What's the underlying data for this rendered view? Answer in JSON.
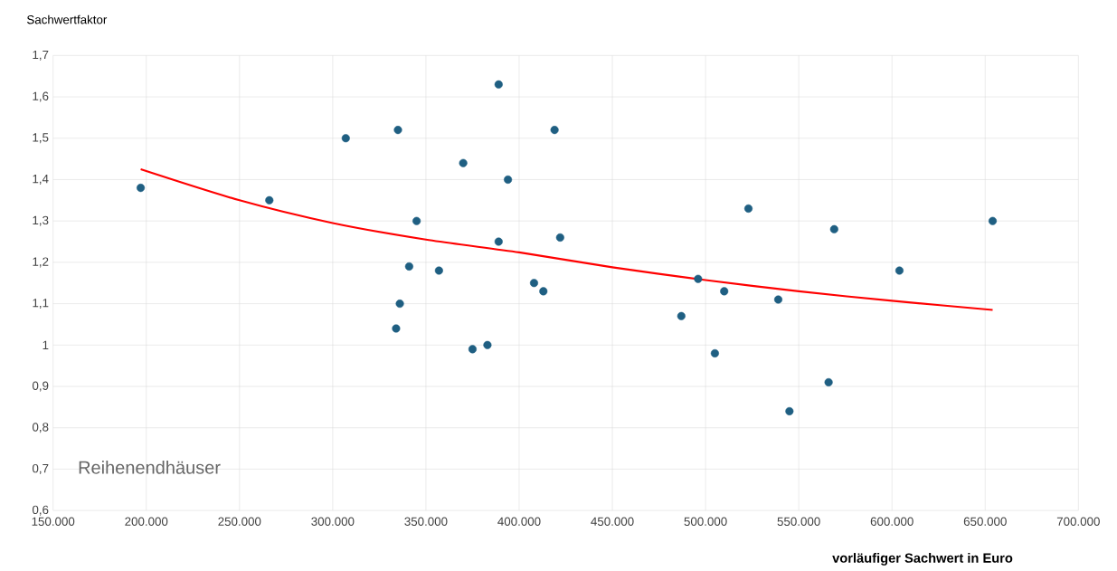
{
  "chart_data": {
    "type": "scatter",
    "ylabel": "Sachwertfaktor",
    "xlabel": "vorläufiger Sachwert in Euro",
    "annotations": [
      "Reihenendhäuser"
    ],
    "xlim": [
      150000,
      700000
    ],
    "ylim": [
      0.6,
      1.7
    ],
    "xticks": [
      {
        "value": 150000,
        "label": "150.000"
      },
      {
        "value": 200000,
        "label": "200.000"
      },
      {
        "value": 250000,
        "label": "250.000"
      },
      {
        "value": 300000,
        "label": "300.000"
      },
      {
        "value": 350000,
        "label": "350.000"
      },
      {
        "value": 400000,
        "label": "400.000"
      },
      {
        "value": 450000,
        "label": "450.000"
      },
      {
        "value": 500000,
        "label": "500.000"
      },
      {
        "value": 550000,
        "label": "550.000"
      },
      {
        "value": 600000,
        "label": "600.000"
      },
      {
        "value": 650000,
        "label": "650.000"
      },
      {
        "value": 700000,
        "label": "700.000"
      }
    ],
    "yticks": [
      {
        "value": 0.6,
        "label": "0,6"
      },
      {
        "value": 0.7,
        "label": "0,7"
      },
      {
        "value": 0.8,
        "label": "0,8"
      },
      {
        "value": 0.9,
        "label": "0,9"
      },
      1,
      {
        "value": 1.1,
        "label": "1,1"
      },
      {
        "value": 1.2,
        "label": "1,2"
      },
      {
        "value": 1.3,
        "label": "1,3"
      },
      {
        "value": 1.4,
        "label": "1,4"
      },
      {
        "value": 1.5,
        "label": "1,5"
      },
      {
        "value": 1.6,
        "label": "1,6"
      },
      {
        "value": 1.7,
        "label": "1,7"
      }
    ],
    "grid": true,
    "series": [
      {
        "marker": "circle",
        "color": "#1f5f82",
        "x": [
          197000,
          266000,
          307000,
          335000,
          370000,
          389000,
          394000,
          419000,
          345000,
          341000,
          357000,
          336000,
          334000,
          375000,
          383000,
          389000,
          422000,
          408000,
          413000,
          487000,
          496000,
          505000,
          510000,
          523000,
          539000,
          545000,
          566000,
          569000,
          604000,
          654000
        ],
        "values": [
          1.38,
          1.35,
          1.5,
          1.52,
          1.44,
          1.63,
          1.4,
          1.52,
          1.3,
          1.19,
          1.18,
          1.1,
          1.04,
          0.99,
          1.0,
          1.25,
          1.26,
          1.15,
          1.13,
          1.07,
          1.16,
          0.98,
          1.13,
          1.33,
          1.11,
          0.84,
          0.91,
          1.28,
          1.18,
          1.3
        ]
      },
      {
        "type": "line",
        "marker": "none",
        "color": "#ff0000",
        "x": [
          197000,
          250000,
          300000,
          350000,
          400000,
          450000,
          500000,
          550000,
          600000,
          654000
        ],
        "values": [
          1.425,
          1.35,
          1.295,
          1.255,
          1.224,
          1.188,
          1.157,
          1.13,
          1.107,
          1.085
        ]
      }
    ]
  }
}
